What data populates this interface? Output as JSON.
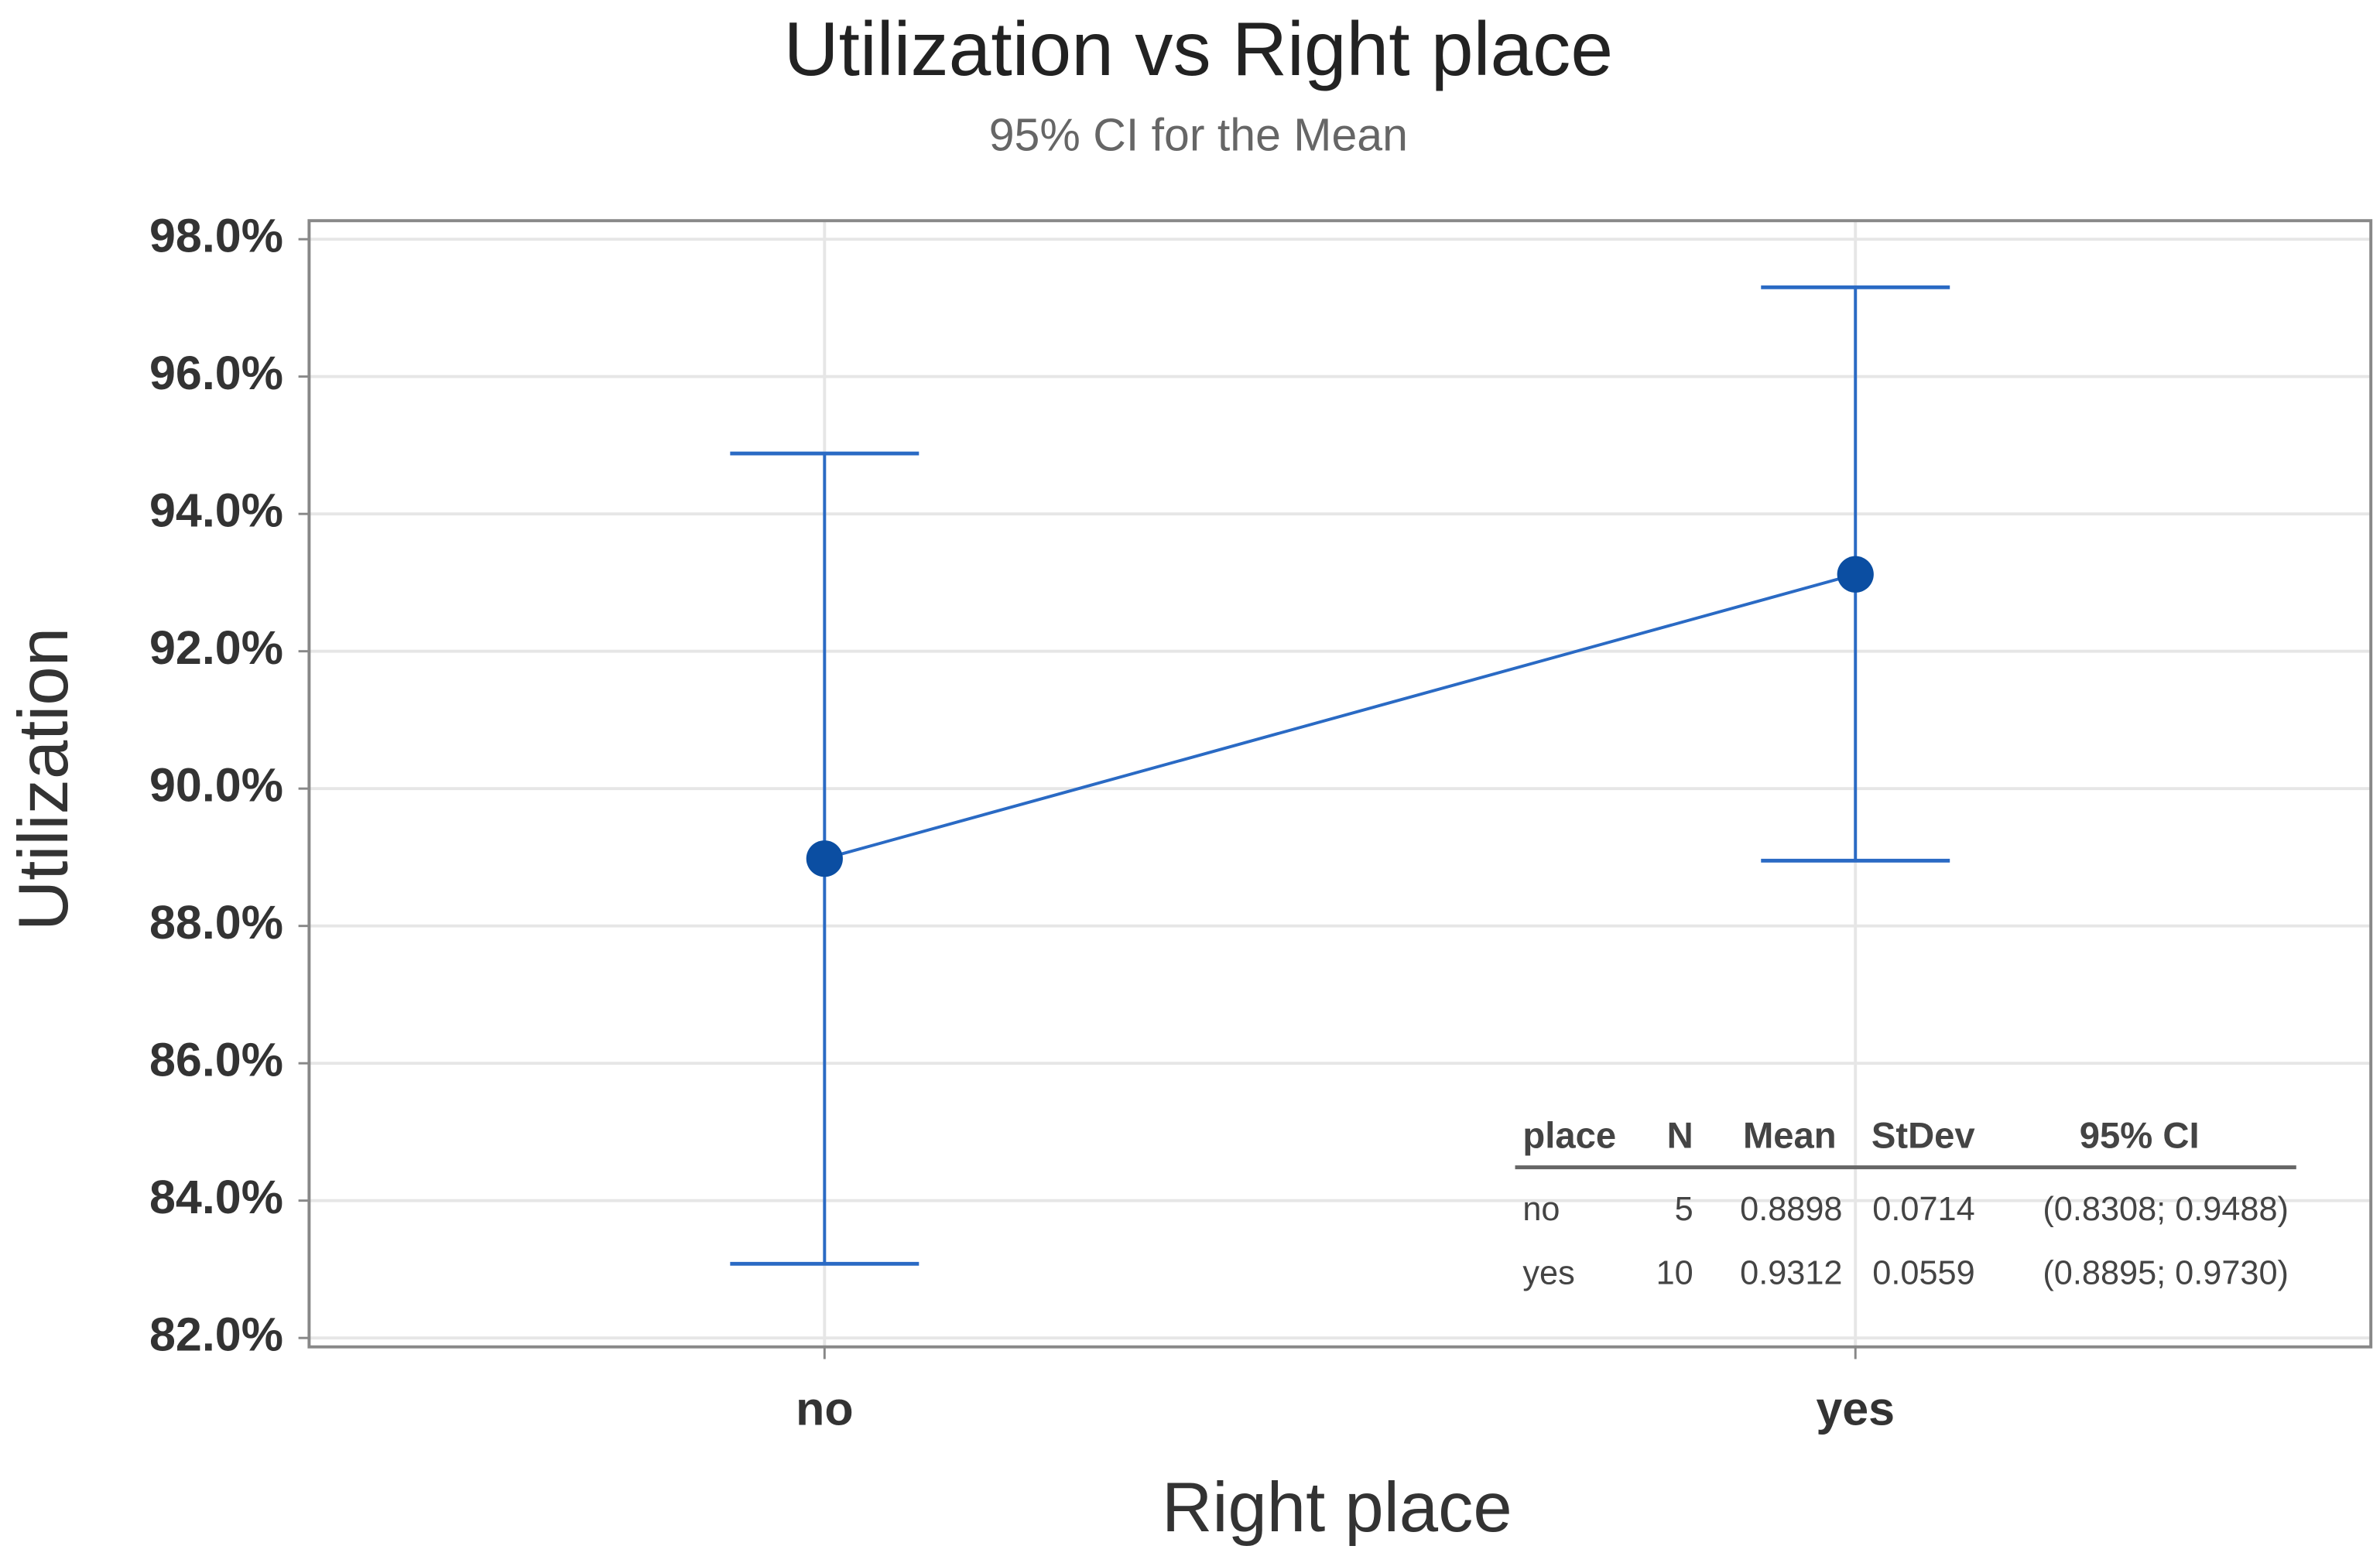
{
  "chart_data": {
    "type": "interval",
    "title": "Utilization vs Right place",
    "subtitle": "95% CI for the Mean",
    "x_label": "Right place",
    "y_label": "Utilization",
    "categories": [
      "no",
      "yes"
    ],
    "series": [
      {
        "color": "#0b4ea2",
        "values": [
          88.98,
          93.12
        ],
        "ci_low": [
          83.08,
          88.95
        ],
        "ci_high": [
          94.88,
          97.3
        ]
      }
    ],
    "ylim": [
      81.87,
      98.27
    ],
    "yticks": [
      {
        "value": 82,
        "label": "82.0%"
      },
      {
        "value": 84,
        "label": "84.0%"
      },
      {
        "value": 86,
        "label": "86.0%"
      },
      {
        "value": 88,
        "label": "88.0%"
      },
      {
        "value": 90,
        "label": "90.0%"
      },
      {
        "value": 92,
        "label": "92.0%"
      },
      {
        "value": 94,
        "label": "94.0%"
      },
      {
        "value": 96,
        "label": "96.0%"
      },
      {
        "value": 98,
        "label": "98.0%"
      }
    ],
    "grid": true,
    "table": {
      "columns": [
        "place",
        "N",
        "Mean",
        "StDev",
        "95% CI"
      ],
      "rows": [
        [
          "no",
          "5",
          "0.8898",
          "0.0714",
          "(0.8308; 0.9488)"
        ],
        [
          "yes",
          "10",
          "0.9312",
          "0.0559",
          "(0.8895; 0.9730)"
        ]
      ]
    }
  }
}
